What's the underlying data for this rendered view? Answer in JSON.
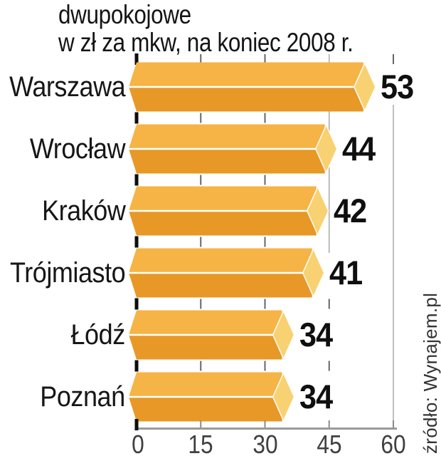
{
  "chart_data": {
    "type": "bar",
    "orientation": "horizontal",
    "title_line1": "dwupokojowe",
    "title_line2": "w zł za mkw, na koniec 2008 r.",
    "categories": [
      "Warszawa",
      "Wrocław",
      "Kraków",
      "Trójmiasto",
      "Łódź",
      "Poznań"
    ],
    "values": [
      53,
      44,
      42,
      41,
      34,
      34
    ],
    "xlabel": "",
    "ylabel": "",
    "xlim": [
      0,
      60
    ],
    "xticks": [
      0,
      15,
      30,
      45,
      60
    ],
    "grid": "dashed tick stubs at 0/15/30/45 between bars; solid vertical lines at 45 and 60",
    "legend": "none",
    "source": "źródło: Wynajem.pl",
    "colors": {
      "bar_top": "#F5B445",
      "bar_bottom": "#E89827",
      "bar_cap": "#F8D172",
      "bar_separator": "#FFFFFF",
      "axis": "#9A9A9A",
      "gridline": "#AFAFAF",
      "tick_gray": "#666666",
      "tick_zero": "#0D0D0D",
      "text": "#141414",
      "tick_label": "#404040",
      "source_text": "#333333"
    }
  }
}
